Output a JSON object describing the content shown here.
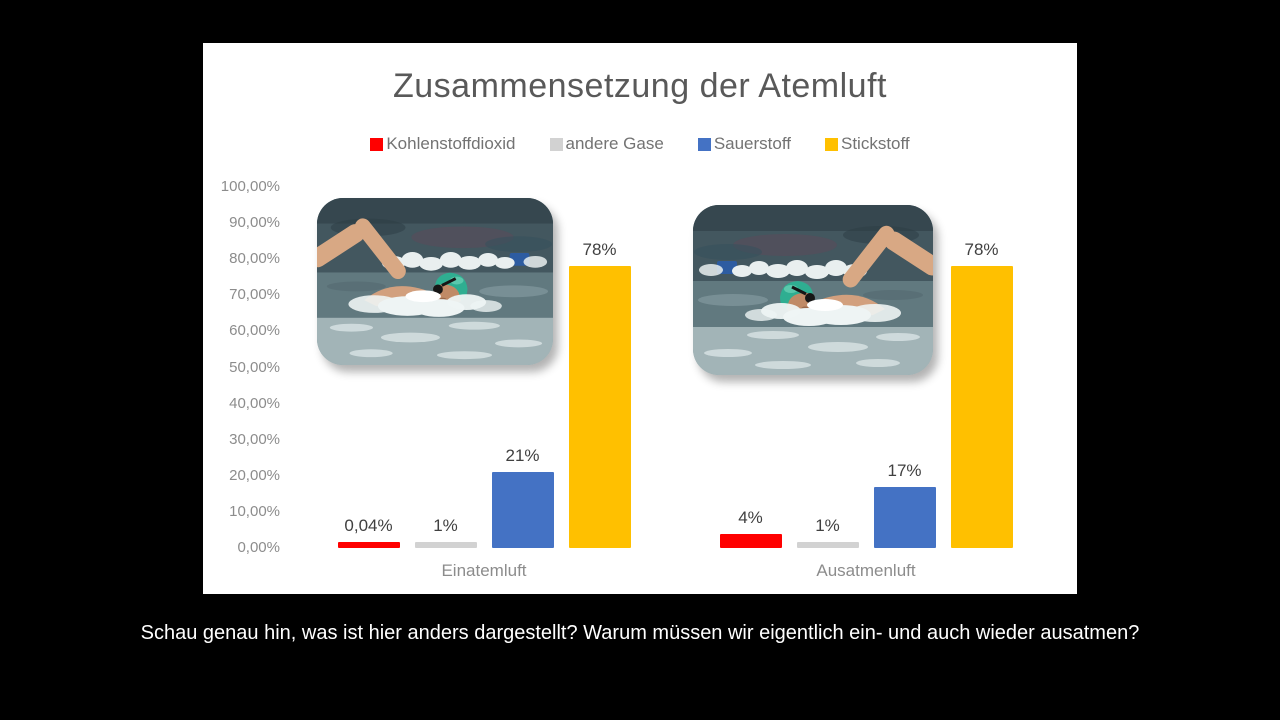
{
  "slide": {
    "background_color": "#000000",
    "panel_color": "#FFFFFF",
    "caption": "Schau genau hin, was ist hier anders dargestellt? Warum müssen wir eigentlich ein- und auch wieder ausatmen?"
  },
  "chart_data": {
    "type": "bar",
    "title": "Zusammensetzung der Atemluft",
    "legend_position": "top",
    "grid": false,
    "categories": [
      "Einatemluft",
      "Ausatmenluft"
    ],
    "series": [
      {
        "name": "Kohlenstoffdioxid",
        "color": "#FF0000",
        "values": [
          0.04,
          4
        ],
        "data_labels": [
          "0,04%",
          "4%"
        ]
      },
      {
        "name": "andere Gase",
        "color": "#D2D2D2",
        "values": [
          1,
          1
        ],
        "data_labels": [
          "1%",
          "1%"
        ]
      },
      {
        "name": "Sauerstoff",
        "color": "#4472C4",
        "values": [
          21,
          17
        ],
        "data_labels": [
          "21%",
          "17%"
        ]
      },
      {
        "name": "Stickstoff",
        "color": "#FFC000",
        "values": [
          78,
          78
        ],
        "data_labels": [
          "78%",
          "78%"
        ]
      }
    ],
    "y_axis": {
      "min": 0,
      "max": 100,
      "step": 10,
      "tick_labels": [
        "0,00%",
        "10,00%",
        "20,00%",
        "30,00%",
        "40,00%",
        "50,00%",
        "60,00%",
        "70,00%",
        "80,00%",
        "90,00%",
        "100,00%"
      ]
    },
    "title_color": "#595959",
    "axis_text_color": "#8C8C8C",
    "data_label_color": "#404040"
  },
  "images": {
    "left_description": "swimmer freestyle in pool",
    "right_description": "swimmer freestyle in pool (mirrored)"
  }
}
